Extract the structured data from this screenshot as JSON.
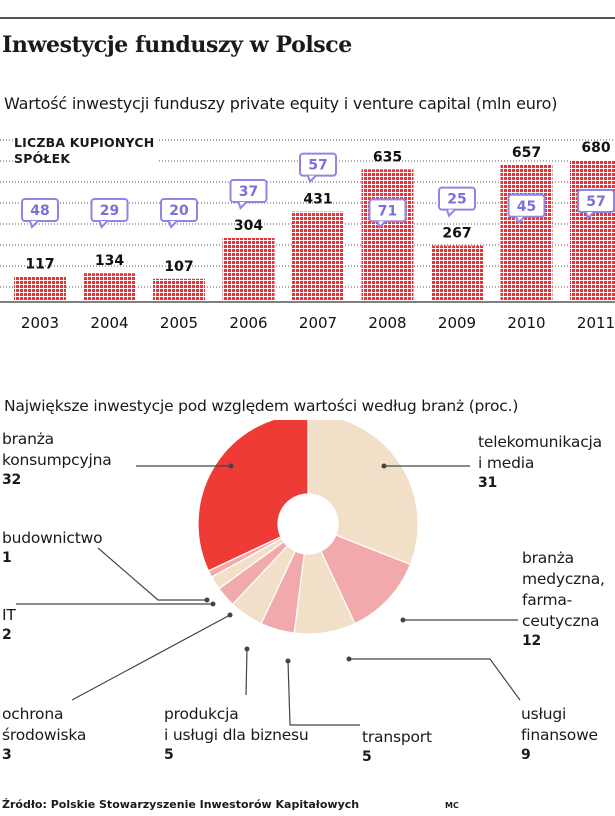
{
  "header": {
    "title": "Inwestycje funduszy w Polsce"
  },
  "bar_section": {
    "subtitle": "Wartość inwestycji funduszy private equity i venture capital (mln euro)",
    "count_label_line1": "LICZBA KUPIONYCH",
    "count_label_line2": "SPÓŁEK"
  },
  "pie_section": {
    "subtitle": "Największe inwestycje pod względem wartości według branż (proc.)"
  },
  "footer": {
    "source": "Źródło: Polskie Stowarzyszenie Inwestorów Kapitałowych",
    "credit": "MC"
  },
  "colors": {
    "bar_red": "#e8333a",
    "badge_border": "#8e86e6",
    "badge_text": "#7a70d8",
    "pie_red": "#ef3b36",
    "pie_beige": "#f1dfc7",
    "pie_pink": "#f2a9ac"
  },
  "chart_data": [
    {
      "type": "bar",
      "categories": [
        "2003",
        "2004",
        "2005",
        "2006",
        "2007",
        "2008",
        "2009",
        "2010",
        "2011"
      ],
      "series": [
        {
          "values": [
            117,
            134,
            107,
            304,
            431,
            635,
            267,
            657,
            680
          ]
        }
      ],
      "purchased_companies": [
        48,
        29,
        20,
        37,
        57,
        71,
        25,
        45,
        57
      ],
      "ylim": [
        0,
        680
      ],
      "grid": true
    },
    {
      "type": "pie",
      "donut": true,
      "slices": [
        {
          "label": "telekomunikacja i media",
          "label_lines": [
            "telekomunikacja",
            "i media"
          ],
          "value": 31,
          "color": "#f1dfc7"
        },
        {
          "label": "branża medyczna, farmaceutyczna",
          "label_lines": [
            "branża",
            "medyczna,",
            "farma-",
            "ceutyczna"
          ],
          "value": 12,
          "color": "#f2a9ac"
        },
        {
          "label": "usługi finansowe",
          "label_lines": [
            "usługi",
            "finansowe"
          ],
          "value": 9,
          "color": "#f1dfc7"
        },
        {
          "label": "transport",
          "label_lines": [
            "transport"
          ],
          "value": 5,
          "color": "#f2a9ac"
        },
        {
          "label": "produkcja i usługi dla biznesu",
          "label_lines": [
            "produkcja",
            "i usługi dla biznesu"
          ],
          "value": 5,
          "color": "#f1dfc7"
        },
        {
          "label": "ochrona środowiska",
          "label_lines": [
            "ochrona",
            "środowiska"
          ],
          "value": 3,
          "color": "#f2a9ac"
        },
        {
          "label": "IT",
          "label_lines": [
            "IT"
          ],
          "value": 2,
          "color": "#f1dfc7"
        },
        {
          "label": "budownictwo",
          "label_lines": [
            "budownictwo"
          ],
          "value": 1,
          "color": "#f2a9ac"
        },
        {
          "label": "branża konsumpcyjna",
          "label_lines": [
            "branża",
            "konsumpcyjna"
          ],
          "value": 32,
          "color": "#ef3b36"
        }
      ]
    }
  ]
}
